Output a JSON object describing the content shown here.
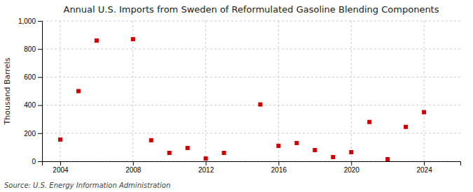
{
  "chart_data": {
    "type": "scatter",
    "title": "Annual U.S. Imports from Sweden of Reformulated Gasoline Blending Components",
    "ylabel": "Thousand Barrels",
    "annotations": [
      "Source: U.S. Energy Information Administration"
    ],
    "x": [
      2004,
      2005,
      2006,
      2008,
      2009,
      2010,
      2011,
      2012,
      2013,
      2015,
      2016,
      2017,
      2018,
      2019,
      2020,
      2021,
      2022,
      2023,
      2024
    ],
    "values": [
      155,
      500,
      860,
      870,
      150,
      60,
      95,
      20,
      60,
      405,
      110,
      130,
      80,
      30,
      65,
      280,
      15,
      245,
      350
    ],
    "color": "#cc0000",
    "marker": "square",
    "xlim": [
      2003,
      2026
    ],
    "xticks": [
      2004,
      2008,
      2012,
      2016,
      2020,
      2024
    ],
    "ylim": [
      0,
      1000
    ],
    "yticks": [
      0,
      200,
      400,
      600,
      800,
      {
        "value": 1000,
        "label": "1,000"
      }
    ],
    "grid": true
  }
}
